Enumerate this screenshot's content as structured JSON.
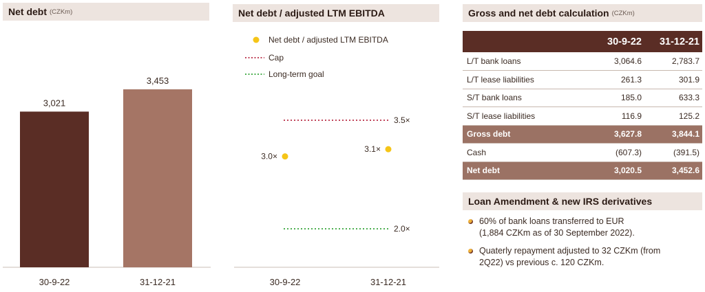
{
  "panels": {
    "net_debt": {
      "title": "Net debt",
      "unit": "(CZKm)"
    },
    "ratio": {
      "title": "Net debt / adjusted LTM EBITDA"
    },
    "calc": {
      "title": "Gross and net debt calculation",
      "unit": "(CZKm)"
    },
    "loan": {
      "title": "Loan Amendment & new IRS derivatives"
    }
  },
  "chart_data": [
    {
      "type": "bar",
      "title": "Net debt (CZKm)",
      "categories": [
        "30-9-22",
        "31-12-21"
      ],
      "values": [
        3021,
        3453
      ],
      "value_labels": [
        "3,021",
        "3,453"
      ],
      "colors": [
        "#5a2d25",
        "#a57565"
      ],
      "ylim": [
        0,
        4400
      ]
    },
    {
      "type": "scatter",
      "title": "Net debt / adjusted LTM EBITDA",
      "categories": [
        "30-9-22",
        "31-12-21"
      ],
      "series": [
        {
          "name": "Net debt / adjusted LTM EBITDA",
          "values": [
            3.0,
            3.1
          ],
          "labels": [
            "3.0×",
            "3.1×"
          ],
          "color": "#f5c518"
        }
      ],
      "reference_lines": [
        {
          "name": "Cap",
          "value": 3.5,
          "label": "3.5×",
          "color": "#c0445a"
        },
        {
          "name": "Long-term goal",
          "value": 2.0,
          "label": "2.0×",
          "color": "#4caf50"
        }
      ],
      "legend_position": "top-left"
    }
  ],
  "table": {
    "columns": [
      "",
      "30-9-22",
      "31-12-21"
    ],
    "rows": [
      {
        "label": "L/T bank loans",
        "v1": "3,064.6",
        "v2": "2,783.7",
        "highlight": false
      },
      {
        "label": "L/T lease liabilities",
        "v1": "261.3",
        "v2": "301.9",
        "highlight": false
      },
      {
        "label": "S/T bank loans",
        "v1": "185.0",
        "v2": "633.3",
        "highlight": false
      },
      {
        "label": "S/T lease liabilities",
        "v1": "116.9",
        "v2": "125.2",
        "highlight": false
      },
      {
        "label": "Gross debt",
        "v1": "3,627.8",
        "v2": "3,844.1",
        "highlight": true
      },
      {
        "label": "Cash",
        "v1": "(607.3)",
        "v2": "(391.5)",
        "highlight": false
      },
      {
        "label": "Net debt",
        "v1": "3,020.5",
        "v2": "3,452.6",
        "highlight": true
      }
    ]
  },
  "bullets": [
    {
      "line1": "60% of bank loans transferred to EUR",
      "line2": "(1,884 CZKm as of 30 September 2022)."
    },
    {
      "line1": "Quaterly repayment adjusted to 32 CZKm (from",
      "line2": "2Q22) vs previous c. 120 CZKm."
    }
  ]
}
